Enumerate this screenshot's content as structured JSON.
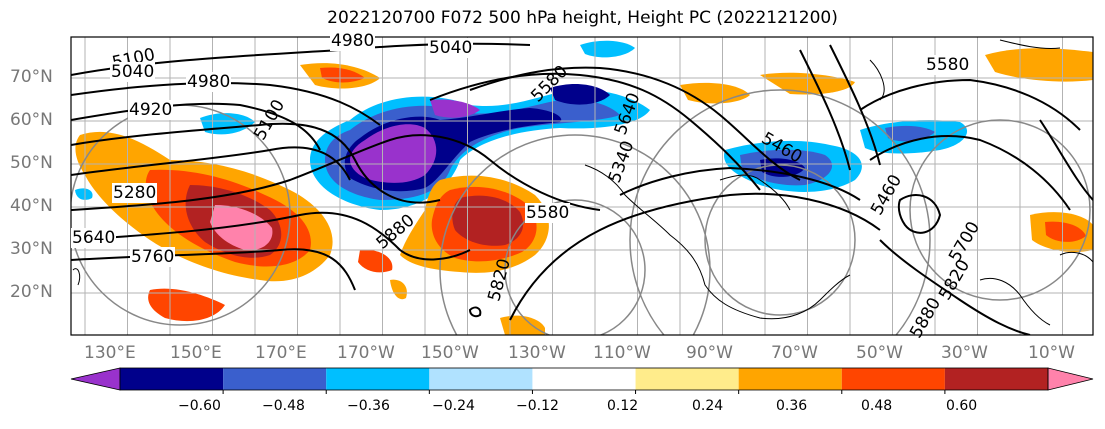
{
  "title": "2022120700 F072 500 hPa height, Height PC (2022121200)",
  "lat_labels": [
    "70°N",
    "60°N",
    "50°N",
    "40°N",
    "30°N",
    "20°N"
  ],
  "lon_labels": [
    "130°E",
    "150°E",
    "170°E",
    "170°W",
    "150°W",
    "130°W",
    "110°W",
    "90°W",
    "70°W",
    "50°W",
    "30°W",
    "10°W"
  ],
  "contour_labels": [
    "4980",
    "5040",
    "5100",
    "5040",
    "4980",
    "4920",
    "5100",
    "5580",
    "5640",
    "5460",
    "5340",
    "5280",
    "5580",
    "5640",
    "5760",
    "5880",
    "5820",
    "5580",
    "5460",
    "5700",
    "5820",
    "5880"
  ],
  "colorbar": {
    "ticks": [
      "−0.60",
      "−0.48",
      "−0.36",
      "−0.24",
      "−0.12",
      "0.12",
      "0.24",
      "0.36",
      "0.48",
      "0.60"
    ],
    "colors": [
      "#9932cc",
      "#00008b",
      "#3a5fcd",
      "#00bfff",
      "#b0e2ff",
      "#ffffff",
      "#ffec8b",
      "#ffa500",
      "#ff4500",
      "#b22222",
      "#ff82ab"
    ]
  }
}
